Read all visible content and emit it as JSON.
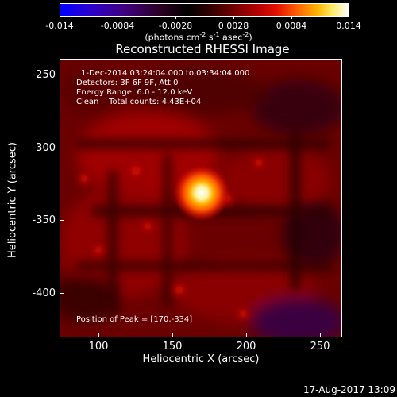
{
  "colorbar": {
    "tick_labels": [
      "-0.014",
      "-0.0084",
      "-0.0028",
      "0.0028",
      "0.0084",
      "0.014"
    ],
    "units": "(photons cm",
    "units_exp1": "-2",
    "units_mid": " s",
    "units_exp2": "-1",
    "units_mid2": " asec",
    "units_exp3": "-2",
    "units_end": ")"
  },
  "title": "Reconstructed RHESSI Image",
  "annotations": {
    "time_range": "1-Dec-2014 03:24:04.000 to 03:34:04.000",
    "detectors": "Detectors: 3F 6F 9F, Att 0",
    "energy_range": "Energy Range: 6.0 - 12.0 keV",
    "clean": "Clean    Total counts: 4.43E+04",
    "peak_position": "Position of Peak = [170,-334]"
  },
  "axes": {
    "xlabel": "Heliocentric X (arcsec)",
    "ylabel": "Heliocentric Y (arcsec)",
    "x_ticks": [
      "100",
      "150",
      "200",
      "250"
    ],
    "y_ticks": [
      "-250",
      "-300",
      "-350",
      "-400"
    ]
  },
  "timestamp": "17-Aug-2017 13:09",
  "colors": {
    "background": "#000000",
    "axis": "#ffffff"
  }
}
